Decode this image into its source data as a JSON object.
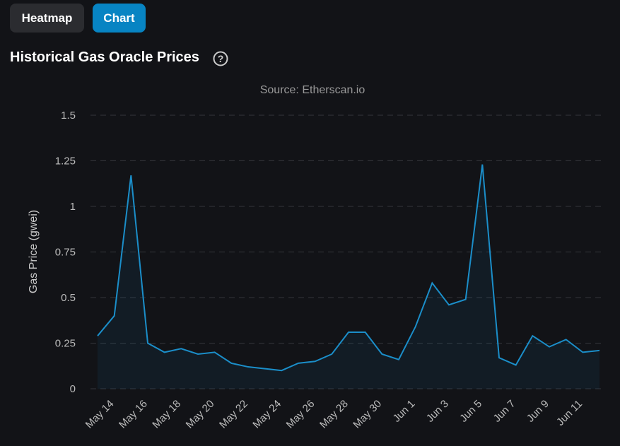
{
  "buttons": [
    "Heatmap",
    "Chart"
  ],
  "chart_data": {
    "type": "line",
    "title": "Historical Gas Oracle Prices",
    "subtitle": "Source: Etherscan.io",
    "y_label": "Gas Price (gwei)",
    "categories": [
      null,
      "May 14",
      null,
      "May 16",
      null,
      "May 18",
      null,
      "May 20",
      null,
      "May 22",
      null,
      "May 24",
      null,
      "May 26",
      null,
      "May 28",
      null,
      "May 30",
      null,
      "Jun 1",
      null,
      "Jun 3",
      null,
      "Jun 5",
      null,
      "Jun 7",
      null,
      "Jun 9",
      null,
      "Jun 11",
      null
    ],
    "series": [
      {
        "name": "Gas Price",
        "color": "#1b8ec9",
        "values": [
          0.29,
          0.4,
          1.17,
          0.25,
          0.2,
          0.22,
          0.19,
          0.2,
          0.14,
          0.12,
          0.11,
          0.1,
          0.14,
          0.15,
          0.19,
          0.31,
          0.31,
          0.19,
          0.16,
          0.34,
          0.58,
          0.46,
          0.49,
          1.23,
          0.17,
          0.13,
          0.29,
          0.23,
          0.27,
          0.2,
          0.21
        ]
      }
    ],
    "ylim": [
      0,
      1.5
    ],
    "yticks": [
      0,
      0.25,
      0.5,
      0.75,
      1,
      1.25,
      1.5
    ],
    "grid": true
  }
}
